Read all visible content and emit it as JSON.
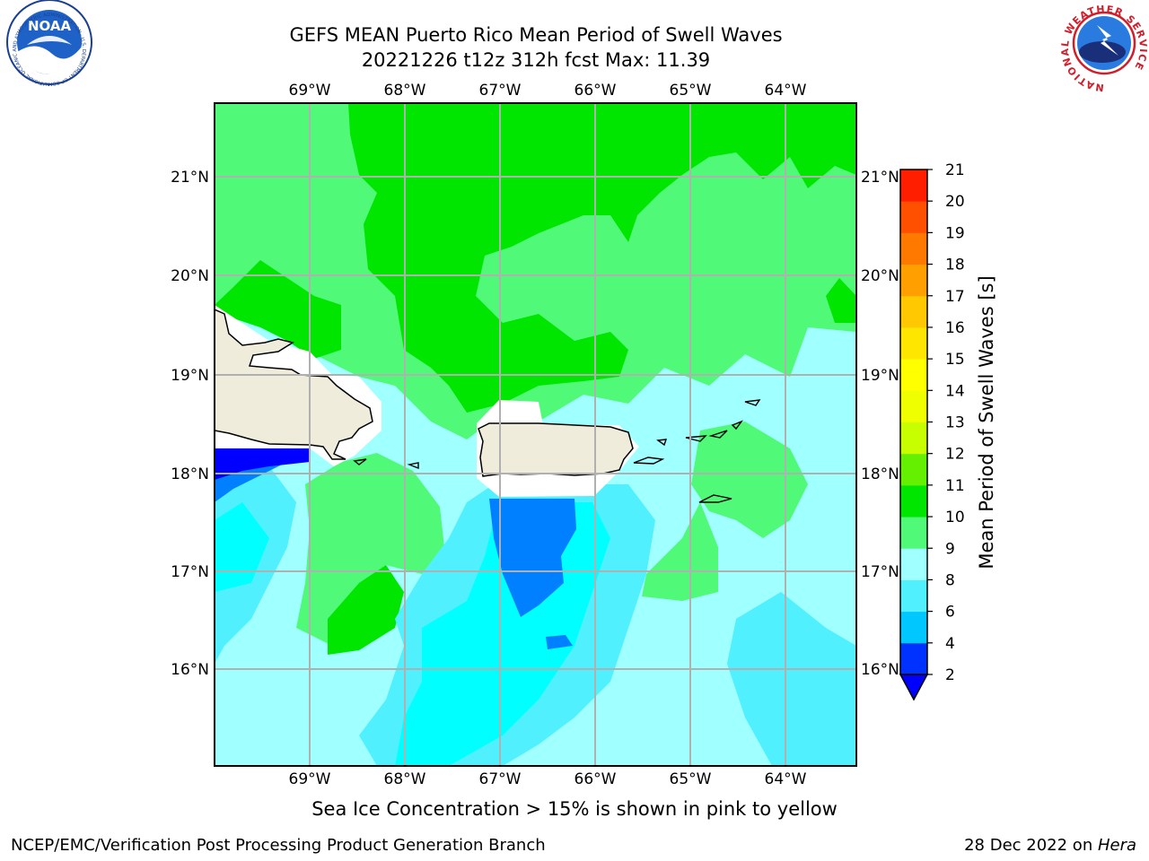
{
  "header": {
    "title_line1": "GEFS MEAN Puerto Rico Mean Period of Swell Waves",
    "title_line2": "20221226 t12z 312h fcst   Max: 11.39"
  },
  "logos": {
    "left": "NOAA",
    "left_ring_text": "NATIONAL OCEANIC AND ATMOSPHERIC ADMINISTRATION · U.S. DEPARTMENT OF COMMERCE",
    "right_ring_text": "NATIONAL WEATHER SERVICE"
  },
  "axes": {
    "lon_labels": [
      "69°W",
      "68°W",
      "67°W",
      "66°W",
      "65°W",
      "64°W"
    ],
    "lat_labels": [
      "21°N",
      "20°N",
      "19°N",
      "18°N",
      "17°N",
      "16°N"
    ]
  },
  "colorbar": {
    "label": "Mean Period of Swell Waves [s]",
    "ticks": [
      "2",
      "4",
      "6",
      "8",
      "9",
      "10",
      "11",
      "12",
      "13",
      "14",
      "15",
      "16",
      "17",
      "18",
      "19",
      "20",
      "21"
    ],
    "colors": [
      "#0032ff",
      "#00c8ff",
      "#50f0ff",
      "#a0ffff",
      "#50fa78",
      "#00e600",
      "#64f000",
      "#c8ff00",
      "#f0ff00",
      "#ffff00",
      "#ffe600",
      "#ffc800",
      "#ffa000",
      "#ff7800",
      "#ff5000",
      "#ff1e00"
    ],
    "under_color": "#0000ff"
  },
  "footer": {
    "note": "Sea Ice Concentration > 15% is shown in pink to yellow",
    "credit": "NCEP/EMC/Verification Post Processing Product Generation Branch",
    "date_prefix": "28 Dec 2022 on ",
    "date_host": "Hera"
  }
}
